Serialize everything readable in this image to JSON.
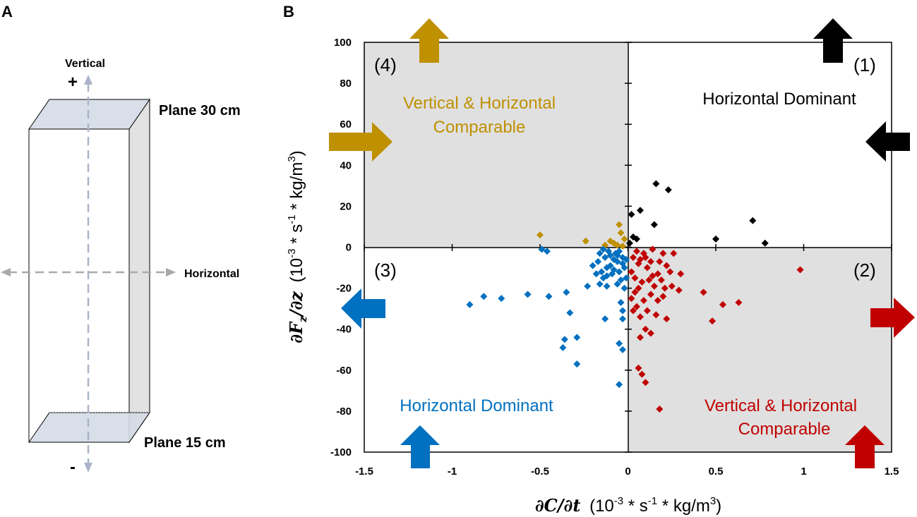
{
  "panel_a": {
    "letter": "A",
    "vertical_label": "Vertical",
    "plus_sign": "+",
    "minus_sign": "-",
    "horizontal_label": "Horizontal",
    "plane_top": "Plane 30 cm",
    "plane_bottom": "Plane 15 cm"
  },
  "panel_b": {
    "letter": "B",
    "quadrants": {
      "q1": {
        "number": "(1)",
        "label": "Horizontal Dominant",
        "color": "#000000"
      },
      "q2": {
        "number": "(2)",
        "label_line1": "Vertical & Horizontal",
        "label_line2": "Comparable",
        "color": "#c00000"
      },
      "q3": {
        "number": "(3)",
        "label": "Horizontal Dominant",
        "color": "#0070c0"
      },
      "q4": {
        "number": "(4)",
        "label_line1": "Vertical & Horizontal",
        "label_line2": "Comparable",
        "color": "#bf9000"
      }
    },
    "shade_color": "#e0e0e0"
  },
  "chart_data": {
    "type": "scatter",
    "xlabel_main": "∂C/∂t",
    "xlabel_units": "(10",
    "xlabel_exp": "-3",
    "xlabel_mid": " * s",
    "xlabel_exp2": "-1",
    "xlabel_end": " * kg/m",
    "xlabel_exp3": "3",
    "xlabel_close": ")",
    "ylabel_main": "∂F",
    "ylabel_sub": "z",
    "ylabel_den": "/∂z",
    "xlim": [
      -1.5,
      1.5
    ],
    "ylim": [
      -100,
      100
    ],
    "xticks": [
      -1.5,
      -1,
      -0.5,
      0,
      0.5,
      1,
      1.5
    ],
    "xtick_labels": [
      "-1.5",
      "-1",
      "-0.5",
      "0",
      "0.5",
      "1",
      "1.5"
    ],
    "yticks": [
      100,
      80,
      60,
      40,
      20,
      0,
      -20,
      -40,
      -60,
      -80,
      -100
    ],
    "ytick_labels": [
      "100",
      "80",
      "60",
      "40",
      "20",
      "0",
      "-20",
      "-40",
      "-60",
      "-80",
      "-100"
    ],
    "series": [
      {
        "name": "Quadrant 1",
        "color": "#000000",
        "points": [
          [
            0.16,
            31
          ],
          [
            0.23,
            28
          ],
          [
            0.07,
            18
          ],
          [
            0.02,
            16
          ],
          [
            0.15,
            11
          ],
          [
            0.71,
            13
          ],
          [
            0.5,
            4
          ],
          [
            0.78,
            2
          ],
          [
            0.03,
            5
          ],
          [
            0.05,
            4
          ],
          [
            0.01,
            2
          ]
        ]
      },
      {
        "name": "Quadrant 4",
        "color": "#bf9000",
        "points": [
          [
            -0.5,
            6
          ],
          [
            -0.05,
            11
          ],
          [
            -0.04,
            7
          ],
          [
            -0.02,
            4
          ],
          [
            -0.24,
            3
          ],
          [
            -0.1,
            3
          ],
          [
            -0.08,
            2
          ],
          [
            -0.13,
            1
          ],
          [
            -0.06,
            1
          ],
          [
            -0.03,
            0.5
          ]
        ]
      },
      {
        "name": "Quadrant 3",
        "color": "#0070c0",
        "points": [
          [
            -0.9,
            -28
          ],
          [
            -0.82,
            -24
          ],
          [
            -0.72,
            -25
          ],
          [
            -0.49,
            -1
          ],
          [
            -0.46,
            -2
          ],
          [
            -0.14,
            -1
          ],
          [
            -0.57,
            -23
          ],
          [
            -0.45,
            -24
          ],
          [
            -0.35,
            -22
          ],
          [
            -0.23,
            -19
          ],
          [
            -0.33,
            -32
          ],
          [
            -0.13,
            -35
          ],
          [
            -0.36,
            -45
          ],
          [
            -0.37,
            -49
          ],
          [
            -0.29,
            -44
          ],
          [
            -0.29,
            -57
          ],
          [
            -0.05,
            -47
          ],
          [
            -0.03,
            -50
          ],
          [
            -0.05,
            -67
          ],
          [
            -0.03,
            -35
          ],
          [
            -0.03,
            -31
          ],
          [
            -0.04,
            -27
          ],
          [
            -0.16,
            -18
          ],
          [
            -0.12,
            -14
          ],
          [
            -0.06,
            -18
          ],
          [
            -0.15,
            -12
          ],
          [
            -0.12,
            -10
          ],
          [
            -0.1,
            -9
          ],
          [
            -0.08,
            -11
          ],
          [
            -0.06,
            -7
          ],
          [
            -0.17,
            -7
          ],
          [
            -0.13,
            -5
          ],
          [
            -0.1,
            -4
          ],
          [
            -0.07,
            -3
          ],
          [
            -0.05,
            -2
          ],
          [
            -0.03,
            -5
          ],
          [
            -0.02,
            -10
          ],
          [
            -0.01,
            -15
          ],
          [
            -0.11,
            -2
          ],
          [
            -0.16,
            -3
          ],
          [
            -0.2,
            -9
          ],
          [
            -0.08,
            -6
          ],
          [
            -0.05,
            -12
          ],
          [
            -0.03,
            -8
          ],
          [
            -0.14,
            -15
          ],
          [
            -0.09,
            -13
          ],
          [
            -0.04,
            -16
          ],
          [
            -0.02,
            -20
          ],
          [
            -0.06,
            -4
          ],
          [
            -0.01,
            -6
          ],
          [
            -0.12,
            -19
          ],
          [
            -0.18,
            -13
          ]
        ]
      },
      {
        "name": "Quadrant 2",
        "color": "#c00000",
        "points": [
          [
            0.98,
            -11
          ],
          [
            0.05,
            -2
          ],
          [
            0.09,
            -3
          ],
          [
            0.14,
            -1
          ],
          [
            0.2,
            -3
          ],
          [
            0.26,
            -3
          ],
          [
            0.3,
            -13
          ],
          [
            0.24,
            -12
          ],
          [
            0.17,
            -13
          ],
          [
            0.11,
            -10
          ],
          [
            0.06,
            -8
          ],
          [
            0.03,
            -5
          ],
          [
            0.07,
            -6
          ],
          [
            0.1,
            -5
          ],
          [
            0.13,
            -7
          ],
          [
            0.18,
            -7
          ],
          [
            0.22,
            -9
          ],
          [
            0.02,
            -12
          ],
          [
            0.04,
            -15
          ],
          [
            0.08,
            -17
          ],
          [
            0.12,
            -16
          ],
          [
            0.15,
            -19
          ],
          [
            0.19,
            -16
          ],
          [
            0.25,
            -19
          ],
          [
            0.29,
            -21
          ],
          [
            0.2,
            -24
          ],
          [
            0.13,
            -23
          ],
          [
            0.09,
            -26
          ],
          [
            0.05,
            -29
          ],
          [
            0.03,
            -31
          ],
          [
            0.07,
            -34
          ],
          [
            0.11,
            -31
          ],
          [
            0.16,
            -33
          ],
          [
            0.1,
            -40
          ],
          [
            0.13,
            -42
          ],
          [
            0.07,
            -44
          ],
          [
            0.22,
            -35
          ],
          [
            0.43,
            -22
          ],
          [
            0.48,
            -36
          ],
          [
            0.54,
            -28
          ],
          [
            0.63,
            -27
          ],
          [
            0.06,
            -59
          ],
          [
            0.08,
            -62
          ],
          [
            0.1,
            -66
          ],
          [
            0.18,
            -79
          ],
          [
            0.04,
            -22
          ],
          [
            0.06,
            -20
          ],
          [
            0.14,
            -14
          ],
          [
            0.21,
            -20
          ],
          [
            0.17,
            -26
          ],
          [
            0.02,
            -25
          ]
        ]
      }
    ]
  }
}
